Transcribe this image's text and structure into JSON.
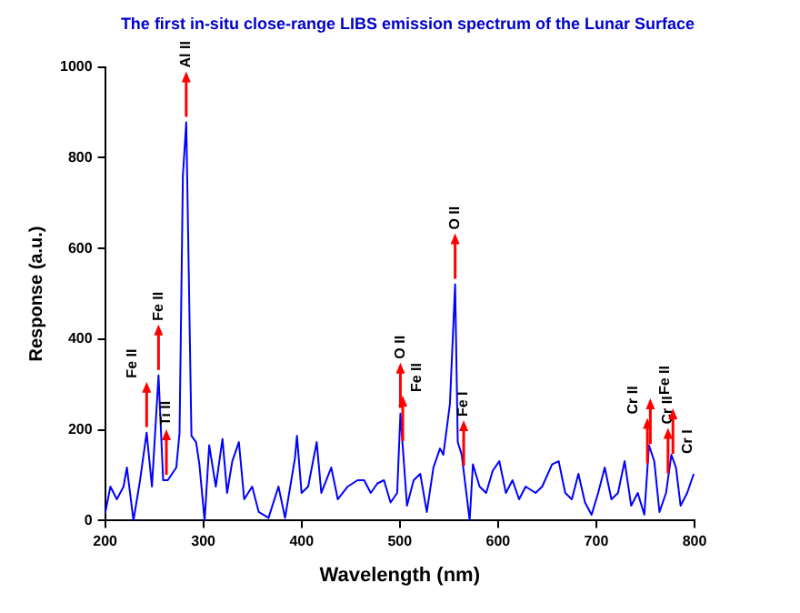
{
  "chart_data": {
    "type": "line",
    "title": "The first in-situ close-range LIBS emission spectrum of the Lunar Surface",
    "xlabel": "Wavelength (nm)",
    "ylabel": "Response (a.u.)",
    "x": [
      200,
      205.4,
      212,
      218.8,
      222.2,
      228.9,
      235.6,
      242.3,
      247.7,
      254.4,
      259.1,
      263.8,
      272.5,
      275.8,
      279.2,
      282.6,
      283.9,
      287.9,
      292.6,
      296,
      301.3,
      306,
      312.7,
      319.5,
      324.2,
      329.5,
      336.2,
      341.6,
      349.7,
      356.4,
      366.4,
      376.5,
      383.2,
      393.3,
      395.3,
      400,
      406.7,
      415.4,
      420.1,
      430.2,
      436.9,
      447,
      457,
      463.7,
      470.4,
      477.2,
      483.9,
      490.6,
      497.3,
      500.6,
      507.3,
      514.1,
      520.8,
      527.5,
      534.2,
      540.9,
      544.3,
      551,
      556.3,
      559,
      563,
      567.7,
      571.1,
      574.4,
      581.2,
      587.9,
      594.6,
      601.3,
      608,
      614.7,
      621.4,
      628.1,
      638.2,
      644.9,
      655,
      661.7,
      668.4,
      675.1,
      681.8,
      688.5,
      695.2,
      701.9,
      708.6,
      715.4,
      722.1,
      728.8,
      735.5,
      742.2,
      748.9,
      753.6,
      759,
      764.3,
      771,
      776.4,
      781.1,
      785.8,
      792.5,
      799.2
    ],
    "series": [
      {
        "color": "#0000ff",
        "values": [
          15,
          75,
          47,
          75,
          117,
          0,
          89,
          194,
          75,
          320,
          89,
          89,
          117,
          194,
          760,
          878,
          715,
          187,
          173,
          124,
          0,
          166,
          75,
          180,
          61,
          131,
          173,
          47,
          75,
          19,
          6,
          75,
          6,
          138,
          187,
          61,
          75,
          173,
          61,
          117,
          47,
          75,
          89,
          89,
          61,
          82,
          89,
          40,
          61,
          236,
          33,
          89,
          103,
          19,
          117,
          159,
          145,
          257,
          521,
          173,
          145,
          61,
          0,
          124,
          75,
          61,
          110,
          131,
          61,
          89,
          47,
          75,
          61,
          75,
          124,
          131,
          61,
          47,
          103,
          40,
          13,
          61,
          117,
          47,
          61,
          131,
          33,
          61,
          13,
          166,
          131,
          19,
          61,
          145,
          117,
          33,
          61,
          103
        ]
      }
    ],
    "xlim": [
      200,
      800
    ],
    "xticks": [
      200,
      300,
      400,
      500,
      600,
      700,
      800
    ],
    "ylim": [
      0,
      1000
    ],
    "yticks": [
      0,
      200,
      400,
      600,
      800,
      1000
    ],
    "grid": false,
    "legend": false,
    "marker": "none",
    "line_style": "solid",
    "annotations": [
      {
        "text": "Fe II",
        "x": 242.3,
        "y": 194
      },
      {
        "text": "Fe II",
        "x": 254.4,
        "y": 320
      },
      {
        "text": "Ti II",
        "x": 262.4,
        "y": 89
      },
      {
        "text": "Al II",
        "x": 282.6,
        "y": 878
      },
      {
        "text": "O II",
        "x": 500.6,
        "y": 236
      },
      {
        "text": "Fe II",
        "x": 503,
        "y": 163
      },
      {
        "text": "O II",
        "x": 556.3,
        "y": 521
      },
      {
        "text": "Fe I",
        "x": 565,
        "y": 109
      },
      {
        "text": "Cr II",
        "x": 752,
        "y": 114
      },
      {
        "text": "Fe II",
        "x": 755,
        "y": 157
      },
      {
        "text": "Cr II",
        "x": 773,
        "y": 92
      },
      {
        "text": "Cr I",
        "x": 778,
        "y": 135
      }
    ]
  }
}
